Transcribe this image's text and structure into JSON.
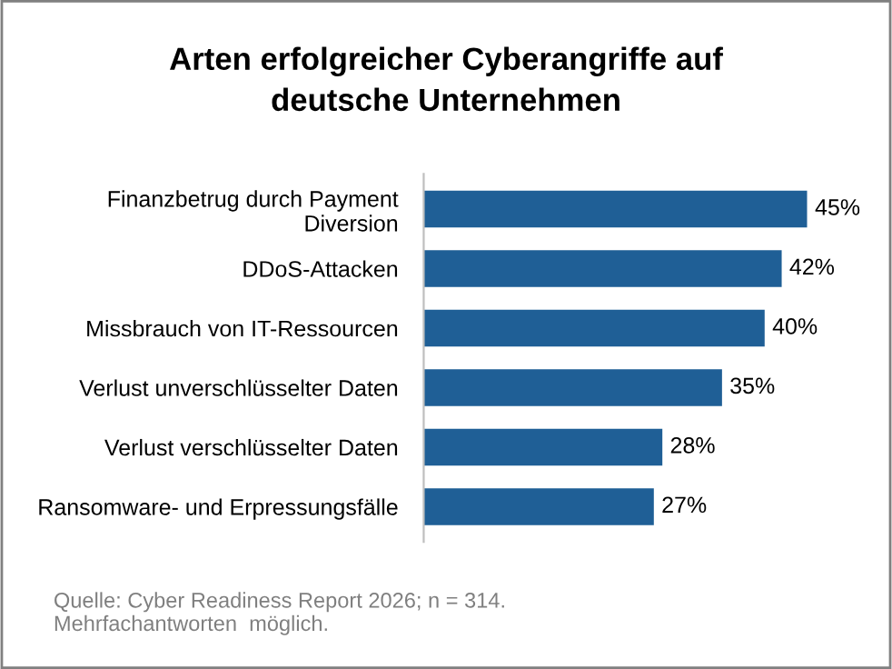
{
  "chart_data": {
    "type": "bar",
    "orientation": "horizontal",
    "title": "Arten erfolgreicher Cyberangriffe auf\ndeutsche Unternehmen",
    "categories": [
      "Finanzbetrug durch Payment\nDiversion",
      "DDoS-Attacken",
      "Missbrauch von IT-Ressourcen",
      "Verlust unverschlüsselter Daten",
      "Verlust verschlüsselter Daten",
      "Ransomware- und Erpressungsfälle"
    ],
    "values": [
      45,
      42,
      40,
      35,
      28,
      27
    ],
    "value_labels": [
      "45%",
      "42%",
      "40%",
      "35%",
      "28%",
      "27%"
    ],
    "color": "#1f5f96",
    "grid": false,
    "legend": false,
    "annotations": [
      "Quelle: Cyber Readiness Report 2026; n = 314.\nMehrfachantworten  möglich."
    ]
  }
}
